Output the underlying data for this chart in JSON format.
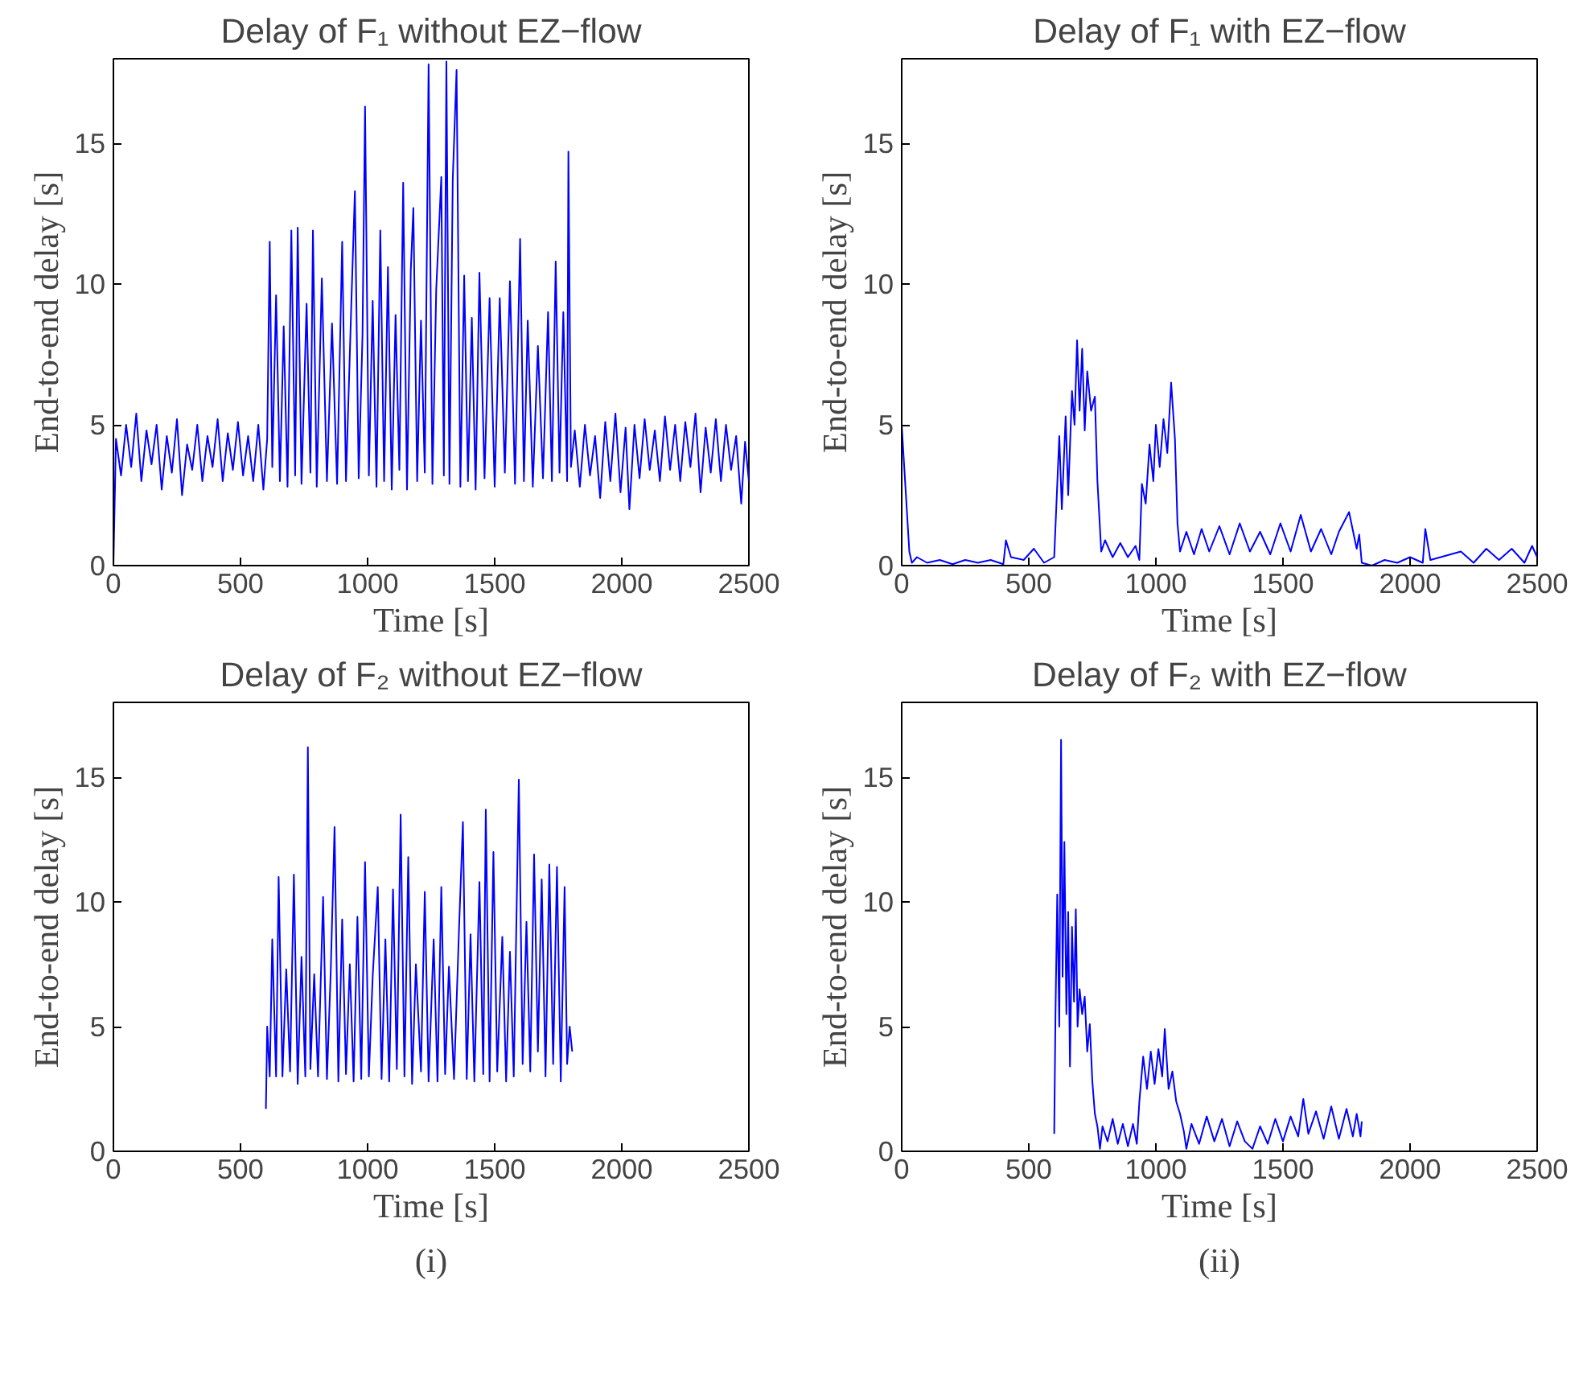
{
  "chart_data": [
    {
      "type": "line",
      "title": "Delay of F₁ without EZ−flow",
      "xlabel": "Time [s]",
      "ylabel": "End-to-end delay [s]",
      "xlim": [
        0,
        2500
      ],
      "ylim": [
        0,
        18
      ],
      "xticks": [
        0,
        500,
        1000,
        1500,
        2000,
        2500
      ],
      "yticks": [
        0,
        5,
        10,
        15
      ],
      "series": [
        {
          "color": "#0000ff",
          "x": [
            0,
            10,
            30,
            50,
            70,
            90,
            110,
            130,
            150,
            170,
            190,
            210,
            230,
            250,
            270,
            290,
            310,
            330,
            350,
            370,
            390,
            410,
            430,
            450,
            470,
            490,
            510,
            530,
            550,
            570,
            590,
            605,
            615,
            625,
            640,
            655,
            670,
            685,
            700,
            715,
            725,
            740,
            760,
            775,
            785,
            800,
            820,
            840,
            860,
            880,
            900,
            915,
            935,
            950,
            965,
            980,
            990,
            1005,
            1020,
            1035,
            1050,
            1065,
            1080,
            1095,
            1110,
            1125,
            1140,
            1155,
            1170,
            1180,
            1195,
            1210,
            1225,
            1240,
            1255,
            1270,
            1290,
            1300,
            1310,
            1322,
            1335,
            1350,
            1365,
            1380,
            1395,
            1410,
            1425,
            1440,
            1460,
            1480,
            1500,
            1520,
            1540,
            1560,
            1580,
            1600,
            1615,
            1630,
            1650,
            1670,
            1690,
            1710,
            1725,
            1740,
            1755,
            1770,
            1785,
            1790,
            1800,
            1815,
            1835,
            1855,
            1875,
            1895,
            1915,
            1935,
            1955,
            1975,
            1995,
            2015,
            2030,
            2050,
            2070,
            2090,
            2110,
            2130,
            2150,
            2170,
            2190,
            2210,
            2230,
            2250,
            2270,
            2290,
            2310,
            2330,
            2350,
            2370,
            2390,
            2410,
            2430,
            2450,
            2470,
            2485,
            2500
          ],
          "values": [
            0,
            4.5,
            3.2,
            5.0,
            3.5,
            5.4,
            3.0,
            4.8,
            3.6,
            5.0,
            2.7,
            4.6,
            3.3,
            5.2,
            2.5,
            4.3,
            3.4,
            5.0,
            3.0,
            4.6,
            3.5,
            5.2,
            3.0,
            4.7,
            3.4,
            5.1,
            3.2,
            4.6,
            3.0,
            5.0,
            2.7,
            4.5,
            11.5,
            3.5,
            9.6,
            3.0,
            8.5,
            2.8,
            11.9,
            3.2,
            12.0,
            2.9,
            9.3,
            3.3,
            11.9,
            2.8,
            10.2,
            3.0,
            8.6,
            2.9,
            11.5,
            3.0,
            9.0,
            13.3,
            3.1,
            8.2,
            16.3,
            3.2,
            9.4,
            2.8,
            11.9,
            3.0,
            10.6,
            2.7,
            8.9,
            3.4,
            13.6,
            2.7,
            10.5,
            12.7,
            3.0,
            8.7,
            3.3,
            17.8,
            2.9,
            9.8,
            13.8,
            3.2,
            17.9,
            2.9,
            13.7,
            17.6,
            2.8,
            10.3,
            3.0,
            8.8,
            2.7,
            10.4,
            3.1,
            9.5,
            2.8,
            9.5,
            3.3,
            10.1,
            2.9,
            11.6,
            3.0,
            8.7,
            2.8,
            7.8,
            3.1,
            9.0,
            3.0,
            10.8,
            3.3,
            9.0,
            3.0,
            14.7,
            3.5,
            4.8,
            2.8,
            5.0,
            3.2,
            4.6,
            2.4,
            5.1,
            3.0,
            5.4,
            2.6,
            4.9,
            2.0,
            5.0,
            3.1,
            5.2,
            3.4,
            4.8,
            3.0,
            5.3,
            3.4,
            5.0,
            3.0,
            5.1,
            3.5,
            5.4,
            2.6,
            4.9,
            3.3,
            5.2,
            3.0,
            5.0,
            3.4,
            4.6,
            2.2,
            4.4,
            3.0
          ]
        }
      ]
    },
    {
      "type": "line",
      "title": "Delay of F₁ with EZ−flow",
      "xlabel": "Time [s]",
      "ylabel": "End-to-end delay [s]",
      "xlim": [
        0,
        2500
      ],
      "ylim": [
        0,
        18
      ],
      "xticks": [
        0,
        500,
        1000,
        1500,
        2000,
        2500
      ],
      "yticks": [
        0,
        5,
        10,
        15
      ],
      "series": [
        {
          "color": "#0000ff",
          "x": [
            0,
            10,
            20,
            30,
            40,
            60,
            100,
            150,
            200,
            250,
            300,
            350,
            400,
            410,
            430,
            480,
            520,
            560,
            600,
            620,
            630,
            645,
            655,
            670,
            680,
            690,
            700,
            710,
            720,
            730,
            745,
            760,
            770,
            785,
            800,
            830,
            860,
            890,
            920,
            935,
            945,
            960,
            975,
            990,
            1000,
            1015,
            1030,
            1045,
            1060,
            1075,
            1085,
            1095,
            1120,
            1150,
            1180,
            1210,
            1250,
            1290,
            1330,
            1370,
            1410,
            1450,
            1490,
            1530,
            1570,
            1610,
            1650,
            1690,
            1720,
            1760,
            1790,
            1800,
            1810,
            1850,
            1900,
            1950,
            2000,
            2050,
            2060,
            2080,
            2120,
            2200,
            2250,
            2300,
            2350,
            2400,
            2450,
            2480,
            2500
          ],
          "values": [
            5.0,
            3.5,
            2.0,
            0.5,
            0.1,
            0.3,
            0.1,
            0.2,
            0.05,
            0.2,
            0.1,
            0.2,
            0.05,
            0.9,
            0.3,
            0.2,
            0.6,
            0.1,
            0.3,
            4.6,
            2.0,
            5.3,
            2.5,
            6.2,
            5.0,
            8.0,
            5.5,
            7.7,
            4.8,
            6.9,
            5.5,
            6.0,
            3.0,
            0.5,
            0.9,
            0.3,
            0.8,
            0.3,
            0.7,
            0.2,
            2.9,
            2.2,
            4.3,
            3.0,
            5.0,
            3.5,
            5.2,
            4.0,
            6.5,
            4.5,
            1.5,
            0.5,
            1.2,
            0.4,
            1.3,
            0.5,
            1.4,
            0.4,
            1.5,
            0.5,
            1.2,
            0.4,
            1.5,
            0.5,
            1.8,
            0.5,
            1.3,
            0.4,
            1.2,
            1.9,
            0.6,
            1.1,
            0.1,
            0.0,
            0.2,
            0.1,
            0.3,
            0.1,
            1.3,
            0.2,
            0.3,
            0.5,
            0.1,
            0.6,
            0.2,
            0.6,
            0.1,
            0.7,
            0.3
          ]
        }
      ]
    },
    {
      "type": "line",
      "title": "Delay of F₂ without EZ−flow",
      "xlabel": "Time [s]",
      "ylabel": "End-to-end delay [s]",
      "xlim": [
        0,
        2500
      ],
      "ylim": [
        0,
        18
      ],
      "xticks": [
        0,
        500,
        1000,
        1500,
        2000,
        2500
      ],
      "yticks": [
        0,
        5,
        10,
        15
      ],
      "annotations": [
        "(i)"
      ],
      "series": [
        {
          "color": "#0000ff",
          "x": [
            600,
            605,
            615,
            625,
            640,
            650,
            665,
            680,
            695,
            710,
            725,
            740,
            755,
            765,
            775,
            790,
            805,
            825,
            840,
            855,
            870,
            885,
            900,
            915,
            930,
            945,
            960,
            975,
            990,
            1005,
            1020,
            1040,
            1055,
            1070,
            1085,
            1100,
            1115,
            1130,
            1145,
            1160,
            1175,
            1190,
            1210,
            1225,
            1240,
            1260,
            1275,
            1290,
            1305,
            1320,
            1340,
            1360,
            1375,
            1390,
            1405,
            1420,
            1440,
            1455,
            1465,
            1480,
            1495,
            1510,
            1530,
            1545,
            1560,
            1575,
            1595,
            1610,
            1625,
            1640,
            1655,
            1670,
            1685,
            1700,
            1715,
            1730,
            1745,
            1760,
            1775,
            1785,
            1795,
            1805
          ],
          "values": [
            1.7,
            5.0,
            3.0,
            8.5,
            3.0,
            11.0,
            3.0,
            7.3,
            3.2,
            11.1,
            2.7,
            7.8,
            3.0,
            16.2,
            3.3,
            7.1,
            3.0,
            10.2,
            2.9,
            7.2,
            13.0,
            2.8,
            9.3,
            3.1,
            7.5,
            2.8,
            9.4,
            2.9,
            11.6,
            3.0,
            7.0,
            10.6,
            2.9,
            8.5,
            2.8,
            10.5,
            3.3,
            13.5,
            3.0,
            11.8,
            2.7,
            7.5,
            3.2,
            10.4,
            2.8,
            8.5,
            2.8,
            10.6,
            3.1,
            7.4,
            2.9,
            9.0,
            13.2,
            2.9,
            8.7,
            2.8,
            10.8,
            3.1,
            13.7,
            2.8,
            12.0,
            3.2,
            8.6,
            2.8,
            8.0,
            3.0,
            14.9,
            3.5,
            9.2,
            3.2,
            11.9,
            4.0,
            10.9,
            3.0,
            11.5,
            3.5,
            11.4,
            2.8,
            10.6,
            3.5,
            5.0,
            4.0
          ]
        }
      ]
    },
    {
      "type": "line",
      "title": "Delay of F₂ with EZ−flow",
      "xlabel": "Time [s]",
      "ylabel": "End-to-end delay [s]",
      "xlim": [
        0,
        2500
      ],
      "ylim": [
        0,
        18
      ],
      "xticks": [
        0,
        500,
        1000,
        1500,
        2000,
        2500
      ],
      "yticks": [
        0,
        5,
        10,
        15
      ],
      "annotations": [
        "(ii)"
      ],
      "series": [
        {
          "color": "#0000ff",
          "x": [
            600,
            605,
            612,
            620,
            627,
            633,
            640,
            648,
            655,
            662,
            670,
            678,
            685,
            692,
            700,
            710,
            720,
            730,
            740,
            750,
            760,
            770,
            780,
            790,
            810,
            830,
            850,
            870,
            890,
            910,
            925,
            935,
            950,
            965,
            980,
            995,
            1010,
            1025,
            1035,
            1050,
            1065,
            1080,
            1095,
            1110,
            1120,
            1140,
            1170,
            1200,
            1230,
            1260,
            1290,
            1320,
            1350,
            1380,
            1410,
            1440,
            1470,
            1500,
            1530,
            1560,
            1580,
            1600,
            1630,
            1660,
            1690,
            1720,
            1750,
            1775,
            1790,
            1805,
            1810
          ],
          "values": [
            0.7,
            5.5,
            10.3,
            5.0,
            16.5,
            7.0,
            12.4,
            5.5,
            9.6,
            3.4,
            9.0,
            6.0,
            9.7,
            5.0,
            6.5,
            5.5,
            6.2,
            4.0,
            5.1,
            2.8,
            1.5,
            1.0,
            0.1,
            1.0,
            0.4,
            1.3,
            0.3,
            1.1,
            0.2,
            1.1,
            0.3,
            2.0,
            3.8,
            2.5,
            4.0,
            2.7,
            4.1,
            3.0,
            4.9,
            2.5,
            3.2,
            2.0,
            1.5,
            0.8,
            0.1,
            1.1,
            0.3,
            1.4,
            0.4,
            1.3,
            0.2,
            1.2,
            0.4,
            0.1,
            1.0,
            0.3,
            1.3,
            0.4,
            1.4,
            0.6,
            2.1,
            0.7,
            1.6,
            0.5,
            1.8,
            0.5,
            1.7,
            0.6,
            1.5,
            0.6,
            1.2
          ]
        }
      ]
    }
  ]
}
